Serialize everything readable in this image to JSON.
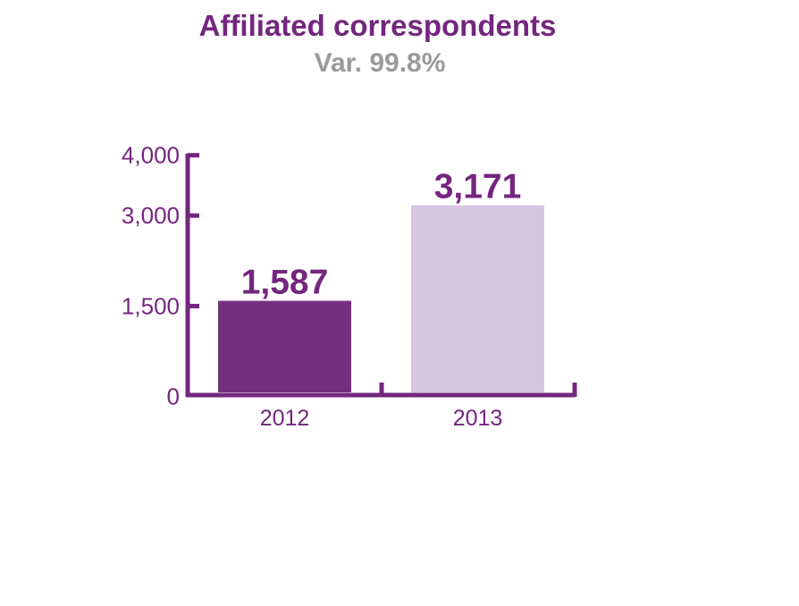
{
  "chart_data": {
    "type": "bar",
    "title": "Affiliated correspondents",
    "subtitle": "Var. 99.8%",
    "categories": [
      "2012",
      "2013"
    ],
    "values": [
      1587,
      3171
    ],
    "value_labels": [
      "1,587",
      "3,171"
    ],
    "xlabel": "",
    "ylabel": "",
    "ylim": [
      0,
      4000
    ],
    "yticks": [
      0,
      1500,
      3000,
      4000
    ],
    "ytick_labels": [
      "0",
      "1,500",
      "3,000",
      "4,000"
    ],
    "grid": false,
    "legend": "none",
    "colors": {
      "axis": "#74267f",
      "text": "#74267f",
      "subtitle": "#9a9a9a",
      "bars": [
        "#74307f",
        "#d7c6e0"
      ]
    }
  }
}
